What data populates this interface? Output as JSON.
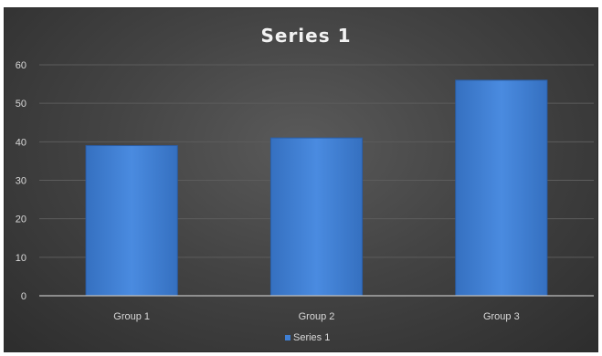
{
  "chart_data": {
    "type": "bar",
    "title": "Series 1",
    "categories": [
      "Group 1",
      "Group 2",
      "Group 3"
    ],
    "series": [
      {
        "name": "Series 1",
        "values": [
          39,
          41,
          56
        ],
        "color": "#3f7fd4"
      }
    ],
    "yticks": [
      "0",
      "10",
      "20",
      "30",
      "40",
      "50",
      "60"
    ],
    "ylim": [
      0,
      60
    ],
    "grid": true,
    "legend": "bottom",
    "colors": {
      "bar": "#3f7fd4",
      "bar_edge": "#2a5ea8",
      "background": "#444444",
      "text": "#d9d9d9",
      "title": "#f2f2f2",
      "gridline": "#5c5c5c"
    }
  }
}
